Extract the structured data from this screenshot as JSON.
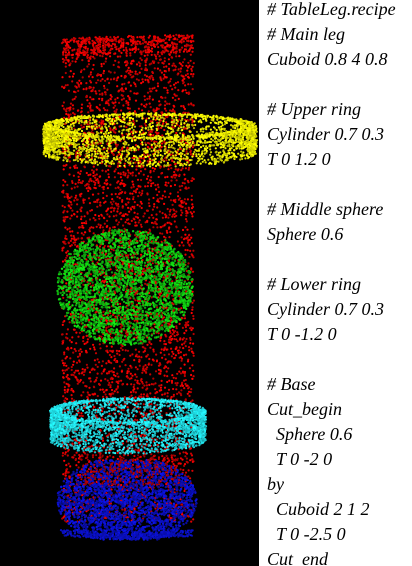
{
  "colors": {
    "background": "#000000",
    "main_leg": "#e00000",
    "upper_ring": "#e6e600",
    "middle_sphere": "#10c810",
    "lower_ring": "#20d8e0",
    "base": "#0a10c8",
    "recipe_text": "#000000"
  },
  "recipe": {
    "lines": [
      "# TableLeg.recipe",
      "# Main leg",
      "Cuboid 0.8 4 0.8",
      "",
      "# Upper ring",
      "Cylinder 0.7 0.3",
      "T 0 1.2 0",
      "",
      "# Middle sphere",
      "Sphere 0.6",
      "",
      "# Lower ring",
      "Cylinder 0.7 0.3",
      "T 0 -1.2 0",
      "",
      "# Base",
      "Cut_begin",
      "  Sphere 0.6",
      "  T 0 -2 0",
      "by",
      "  Cuboid 2 1 2",
      "  T 0 -2.5 0",
      "Cut_end"
    ]
  }
}
